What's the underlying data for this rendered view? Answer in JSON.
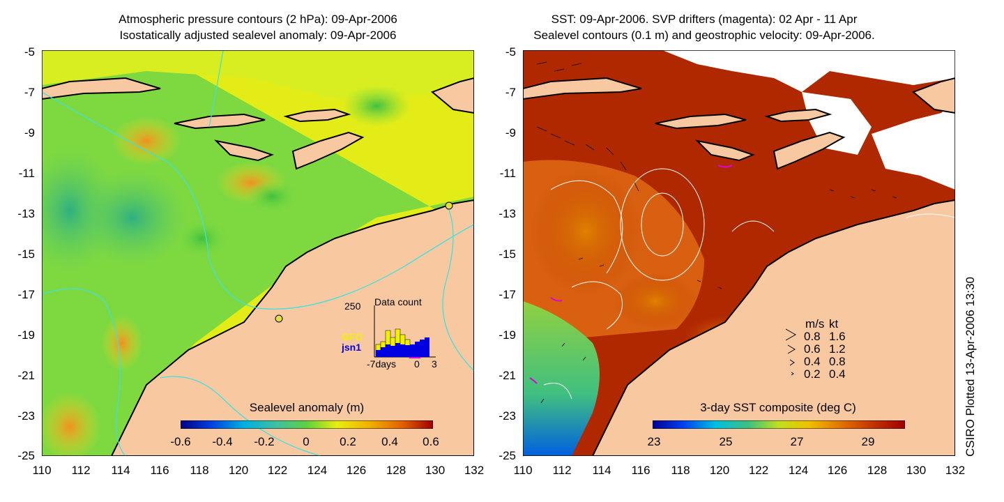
{
  "left_panel": {
    "title_line1": "Atmospheric pressure contours (2 hPa): 09-Apr-2006",
    "title_line2": "Isostatically adjusted sealevel anomaly: 09-Apr-2006",
    "colorbar_title": "Sealevel anomaly (m)",
    "colorbar_ticks": [
      "-0.6",
      "-0.4",
      "-0.2",
      "0",
      "0.2",
      "0.4",
      "0.6"
    ],
    "inset": {
      "title": "Data count",
      "ymax_label": "250",
      "legend_gfo": "GFO",
      "legend_jsn1": "jsn1",
      "xtick_labels": [
        "-7days",
        "0",
        "3"
      ],
      "gfo_color": "#f0f000",
      "jsn1_color": "#0000e0"
    }
  },
  "right_panel": {
    "title_line1": "SST: 09-Apr-2006. SVP drifters (magenta): 02 Apr - 11 Apr",
    "title_line2": "Sealevel contours (0.1 m) and geostrophic velocity: 09-Apr-2006.",
    "colorbar_title": "3-day SST composite (deg C)",
    "colorbar_ticks": [
      "23",
      "25",
      "27",
      "29"
    ],
    "velocity_legend": {
      "header_ms": "m/s",
      "header_kt": "kt",
      "rows": [
        {
          "ms": "0.8",
          "kt": "1.6"
        },
        {
          "ms": "0.6",
          "kt": "1.2"
        },
        {
          "ms": "0.4",
          "kt": "0.8"
        },
        {
          "ms": "0.2",
          "kt": "0.4"
        }
      ]
    }
  },
  "axes": {
    "y_ticks": [
      "-5",
      "-7",
      "-9",
      "-11",
      "-13",
      "-15",
      "-17",
      "-19",
      "-21",
      "-23",
      "-25"
    ],
    "x_ticks": [
      "110",
      "112",
      "114",
      "116",
      "118",
      "120",
      "122",
      "124",
      "126",
      "128",
      "130",
      "132"
    ]
  },
  "credit": "CSIRO Plotted 13-Apr-2006 13:30",
  "colors": {
    "land": "#f8c8a0",
    "sla_mid": "#e8ee10",
    "sst_warm": "#b02000",
    "contour_cyan": "#40e0e0"
  }
}
